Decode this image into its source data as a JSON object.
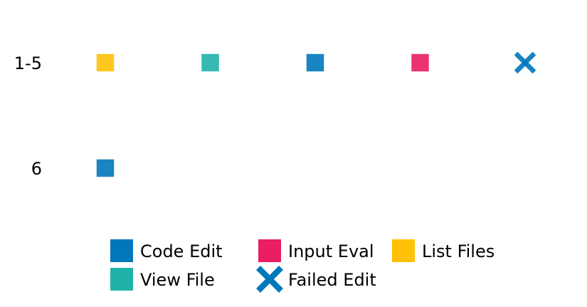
{
  "chart_data": {
    "type": "scatter",
    "rows": [
      "1-5",
      "6"
    ],
    "sequences": [
      {
        "row": "1-5",
        "steps": [
          "List Files",
          "View File",
          "Code Edit",
          "Input Eval",
          "Failed Edit"
        ]
      },
      {
        "row": "6",
        "steps": [
          "Code Edit"
        ]
      }
    ],
    "legend": {
      "placement": "bottom-center",
      "entries": [
        {
          "label": "Code Edit",
          "marker": "square",
          "color": "#0077BB"
        },
        {
          "label": "View File",
          "marker": "square",
          "color": "#20B2AA"
        },
        {
          "label": "Input Eval",
          "marker": "square",
          "color": "#E91E63"
        },
        {
          "label": "Failed Edit",
          "marker": "x",
          "color": "#0077BB"
        },
        {
          "label": "List Files",
          "marker": "square",
          "color": "#FFC107"
        }
      ]
    },
    "grid": false
  }
}
